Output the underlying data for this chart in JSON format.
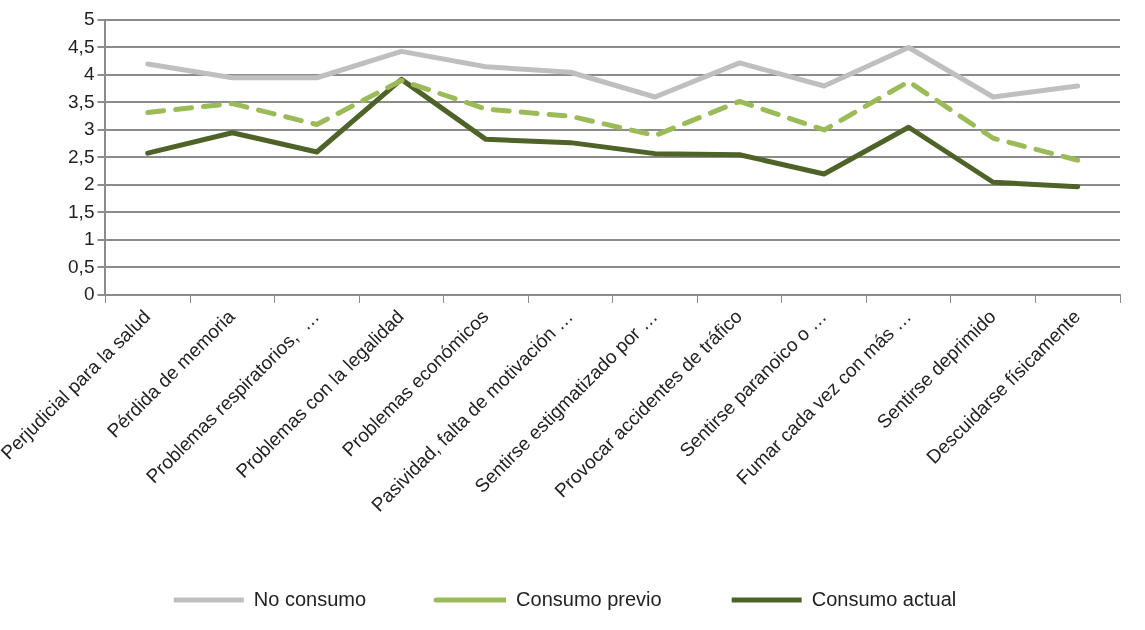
{
  "chart_data": {
    "type": "line",
    "categories": [
      "Perjudicial para la salud",
      "Pérdida de memoria",
      "Problemas respiratorios,  …",
      "Problemas con la legalidad",
      "Problemas económicos",
      "Pasividad, falta de motivación …",
      "Sentirse estigmatizado por …",
      "Provocar accidentes de tráfico",
      "Sentirse paranoico o …",
      "Fumar cada vez con más …",
      "Sentirse deprimido",
      "Descuidarse físicamente"
    ],
    "series": [
      {
        "name": "No consumo",
        "color": "#bfbfbf",
        "line_style": "solid",
        "values": [
          4.2,
          3.95,
          3.95,
          4.43,
          4.15,
          4.05,
          3.6,
          4.22,
          3.8,
          4.5,
          3.6,
          3.8
        ]
      },
      {
        "name": "Consumo previo",
        "color": "#9bbb59",
        "line_style": "dashed",
        "values": [
          3.32,
          3.48,
          3.1,
          3.9,
          3.38,
          3.25,
          2.9,
          3.52,
          3.0,
          3.88,
          2.85,
          2.45
        ]
      },
      {
        "name": "Consumo actual",
        "color": "#4f6228",
        "line_style": "solid",
        "values": [
          2.58,
          2.95,
          2.6,
          3.92,
          2.83,
          2.77,
          2.57,
          2.55,
          2.2,
          3.05,
          2.05,
          1.97
        ]
      }
    ],
    "ylim": [
      0,
      5
    ],
    "yticks": [
      0,
      {
        "value": 0.5,
        "label": "0,5"
      },
      1,
      {
        "value": 1.5,
        "label": "1,5"
      },
      2,
      {
        "value": 2.5,
        "label": "2,5"
      },
      3,
      {
        "value": 3.5,
        "label": "3,5"
      },
      4,
      {
        "value": 4.5,
        "label": "4,5"
      },
      5
    ],
    "grid": "y",
    "legend": "bottom",
    "marker": "none"
  }
}
